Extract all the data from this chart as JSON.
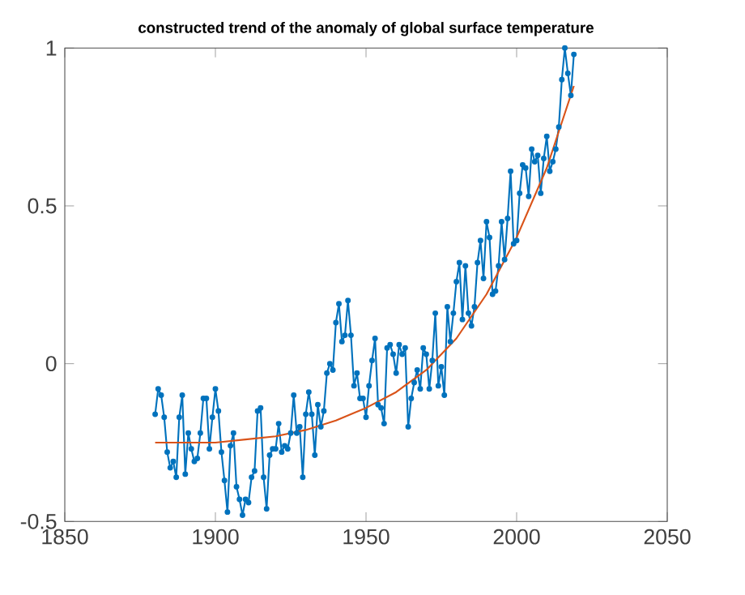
{
  "chart_data": {
    "type": "line",
    "title": "constructed trend of the anomaly of global surface temperature",
    "xlim": [
      1850,
      2050
    ],
    "ylim": [
      -0.5,
      1
    ],
    "xticks": [
      1850,
      1900,
      1950,
      2000,
      2050
    ],
    "yticks": [
      -0.5,
      0,
      0.5,
      1
    ],
    "series": [
      {
        "color": "#0072bd",
        "marker": "circle",
        "x": [
          1880,
          1881,
          1882,
          1883,
          1884,
          1885,
          1886,
          1887,
          1888,
          1889,
          1890,
          1891,
          1892,
          1893,
          1894,
          1895,
          1896,
          1897,
          1898,
          1899,
          1900,
          1901,
          1902,
          1903,
          1904,
          1905,
          1906,
          1907,
          1908,
          1909,
          1910,
          1911,
          1912,
          1913,
          1914,
          1915,
          1916,
          1917,
          1918,
          1919,
          1920,
          1921,
          1922,
          1923,
          1924,
          1925,
          1926,
          1927,
          1928,
          1929,
          1930,
          1931,
          1932,
          1933,
          1934,
          1935,
          1936,
          1937,
          1938,
          1939,
          1940,
          1941,
          1942,
          1943,
          1944,
          1945,
          1946,
          1947,
          1948,
          1949,
          1950,
          1951,
          1952,
          1953,
          1954,
          1955,
          1956,
          1957,
          1958,
          1959,
          1960,
          1961,
          1962,
          1963,
          1964,
          1965,
          1966,
          1967,
          1968,
          1969,
          1970,
          1971,
          1972,
          1973,
          1974,
          1975,
          1976,
          1977,
          1978,
          1979,
          1980,
          1981,
          1982,
          1983,
          1984,
          1985,
          1986,
          1987,
          1988,
          1989,
          1990,
          1991,
          1992,
          1993,
          1994,
          1995,
          1996,
          1997,
          1998,
          1999,
          2000,
          2001,
          2002,
          2003,
          2004,
          2005,
          2006,
          2007,
          2008,
          2009,
          2010,
          2011,
          2012,
          2013,
          2014,
          2015,
          2016,
          2017,
          2018,
          2019
        ],
        "values": [
          -0.16,
          -0.08,
          -0.1,
          -0.17,
          -0.28,
          -0.33,
          -0.31,
          -0.36,
          -0.17,
          -0.1,
          -0.35,
          -0.22,
          -0.27,
          -0.31,
          -0.3,
          -0.22,
          -0.11,
          -0.11,
          -0.27,
          -0.17,
          -0.08,
          -0.15,
          -0.28,
          -0.37,
          -0.47,
          -0.26,
          -0.22,
          -0.39,
          -0.43,
          -0.48,
          -0.43,
          -0.44,
          -0.36,
          -0.34,
          -0.15,
          -0.14,
          -0.36,
          -0.46,
          -0.29,
          -0.27,
          -0.27,
          -0.19,
          -0.28,
          -0.26,
          -0.27,
          -0.22,
          -0.1,
          -0.22,
          -0.2,
          -0.36,
          -0.16,
          -0.09,
          -0.16,
          -0.29,
          -0.13,
          -0.2,
          -0.15,
          -0.03,
          0.0,
          -0.02,
          0.13,
          0.19,
          0.07,
          0.09,
          0.2,
          0.09,
          -0.07,
          -0.03,
          -0.11,
          -0.11,
          -0.17,
          -0.07,
          0.01,
          0.08,
          -0.13,
          -0.14,
          -0.19,
          0.05,
          0.06,
          0.03,
          -0.03,
          0.06,
          0.03,
          0.05,
          -0.2,
          -0.11,
          -0.06,
          -0.02,
          -0.08,
          0.05,
          0.03,
          -0.08,
          0.01,
          0.16,
          -0.07,
          -0.01,
          -0.1,
          0.18,
          0.07,
          0.16,
          0.26,
          0.32,
          0.14,
          0.31,
          0.16,
          0.12,
          0.18,
          0.32,
          0.39,
          0.27,
          0.45,
          0.4,
          0.22,
          0.23,
          0.31,
          0.45,
          0.33,
          0.46,
          0.61,
          0.38,
          0.39,
          0.54,
          0.63,
          0.62,
          0.53,
          0.68,
          0.64,
          0.66,
          0.54,
          0.65,
          0.72,
          0.61,
          0.64,
          0.68,
          0.75,
          0.9,
          1.0,
          0.92,
          0.85,
          0.98
        ]
      },
      {
        "color": "#d95319",
        "marker": "none",
        "x": [
          1880,
          1890,
          1900,
          1910,
          1920,
          1930,
          1940,
          1950,
          1960,
          1970,
          1980,
          1990,
          2000,
          2010,
          2019
        ],
        "values": [
          -0.25,
          -0.25,
          -0.25,
          -0.24,
          -0.23,
          -0.21,
          -0.18,
          -0.14,
          -0.09,
          -0.02,
          0.08,
          0.22,
          0.4,
          0.62,
          0.88
        ]
      }
    ]
  }
}
